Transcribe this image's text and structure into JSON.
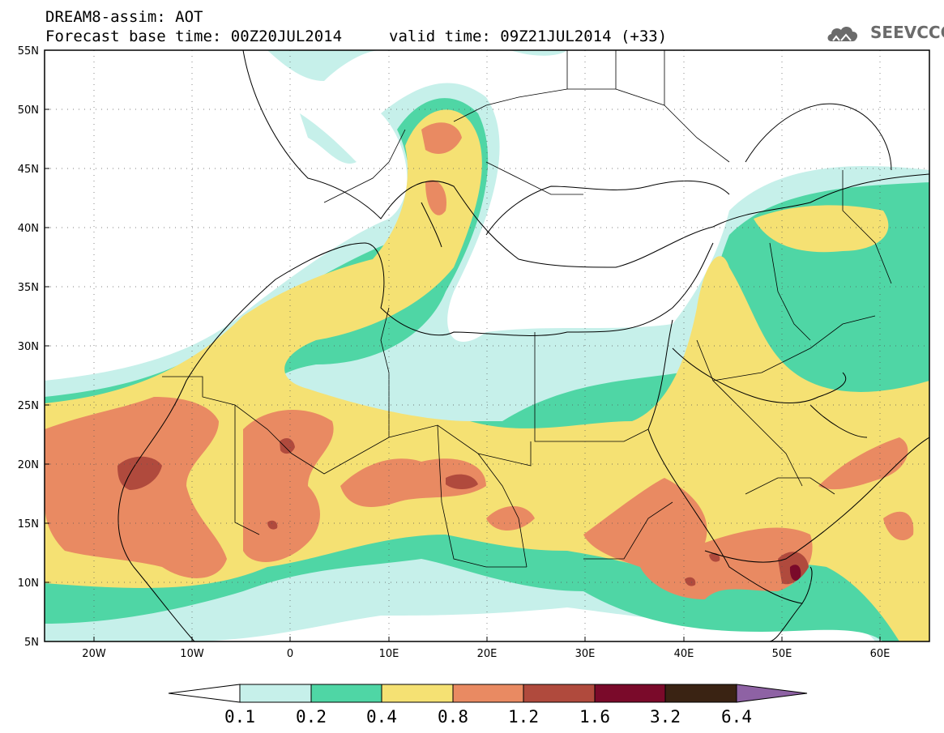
{
  "header": {
    "title_line1": "DREAM8-assim: AOT",
    "title_line2": "Forecast base time: 00Z20JUL2014",
    "valid_time": "valid time: 09Z21JUL2014 (+33)",
    "logo_text": "SEEVCCC"
  },
  "map": {
    "lat_labels": [
      "55N",
      "50N",
      "45N",
      "40N",
      "35N",
      "30N",
      "25N",
      "20N",
      "15N",
      "10N",
      "5N"
    ],
    "lon_labels": [
      "20W",
      "10W",
      "0",
      "10E",
      "20E",
      "30E",
      "40E",
      "50E",
      "60E"
    ],
    "lon_range": [
      -25,
      65
    ],
    "lat_range": [
      5,
      55
    ],
    "grid": "dotted"
  },
  "colorbar": {
    "labels": [
      "0.1",
      "0.2",
      "0.4",
      "0.8",
      "1.2",
      "1.6",
      "3.2",
      "6.4"
    ],
    "colors": [
      "#ffffff",
      "#c6f0ea",
      "#4fd6a5",
      "#f5e173",
      "#e98a62",
      "#b04a3d",
      "#7a0a2a",
      "#3a2313",
      "#8e62a4"
    ]
  },
  "colors": {
    "c01": "#c6f0ea",
    "c02": "#4fd6a5",
    "c04": "#f5e173",
    "c08": "#e98a62",
    "c12": "#b04a3d",
    "c16": "#7a0a2a",
    "c32": "#3a2313",
    "c64": "#8e62a4",
    "land_bg": "#ffffff"
  }
}
